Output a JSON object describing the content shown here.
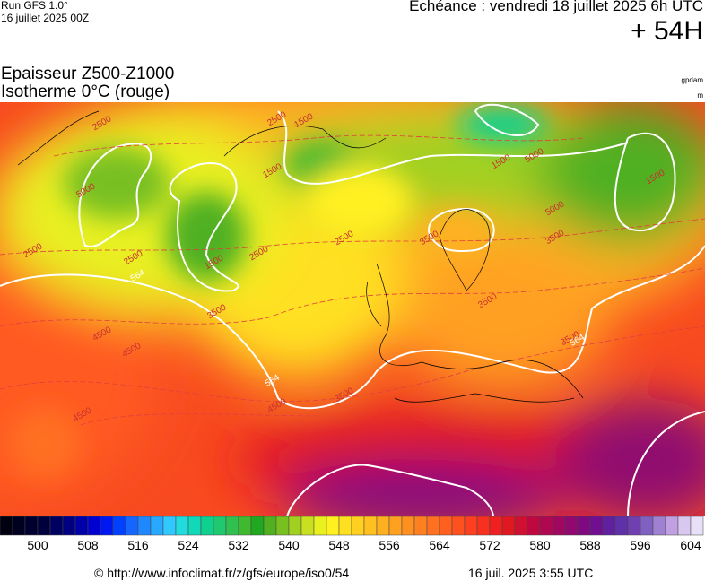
{
  "header": {
    "run": "Run GFS 1.0°",
    "run_date": "16 juillet 2025 00Z",
    "valid": "Échéance : vendredi 18 juillet 2025 6h UTC",
    "lead": "+ 54H",
    "title": "Epaisseur Z500-Z1000",
    "subtitle": "Isotherme 0°C (rouge)",
    "unit_top": "gpdam",
    "unit_bottom": "m"
  },
  "map": {
    "contour_labels": [
      "2500",
      "1500",
      "2500",
      "1500",
      "5000",
      "1500",
      "5000",
      "1500",
      "1500",
      "2500",
      "2500",
      "2500",
      "2500",
      "3500",
      "3500",
      "564",
      "3500",
      "4500",
      "4500",
      "564",
      "3500",
      "4500",
      "4500",
      "3500",
      "3500",
      "564",
      "5000"
    ]
  },
  "colorbar": {
    "colors": [
      "#000010",
      "#000020",
      "#000030",
      "#00003c",
      "#000060",
      "#000080",
      "#0000a8",
      "#0000d0",
      "#0018f0",
      "#0040ff",
      "#1466ff",
      "#2088ff",
      "#28a8ff",
      "#30c8ff",
      "#20dcdc",
      "#10d8b8",
      "#10d090",
      "#20c870",
      "#30c050",
      "#40b830",
      "#20a820",
      "#50b020",
      "#78c020",
      "#a0d020",
      "#c8e020",
      "#e8f020",
      "#fff020",
      "#ffe020",
      "#ffd020",
      "#ffc020",
      "#ffb020",
      "#ffa020",
      "#ff9020",
      "#ff8020",
      "#ff7020",
      "#ff6020",
      "#ff5020",
      "#ff4020",
      "#f83020",
      "#f02020",
      "#e01820",
      "#d01030",
      "#c00840",
      "#b00850",
      "#a00860",
      "#900870",
      "#800880",
      "#701090",
      "#6020a0",
      "#6030a8",
      "#7040b0",
      "#8060c0",
      "#a080d0",
      "#c0a0e0",
      "#d8c8f0",
      "#e8e0f8"
    ],
    "ticks": [
      500,
      508,
      516,
      524,
      532,
      540,
      548,
      556,
      564,
      572,
      580,
      588,
      596,
      604
    ]
  },
  "footer": {
    "source": "© http://www.infoclimat.fr/z/gfs/europe/iso0/54",
    "generated": "16 juil. 2025  3:55 UTC"
  }
}
